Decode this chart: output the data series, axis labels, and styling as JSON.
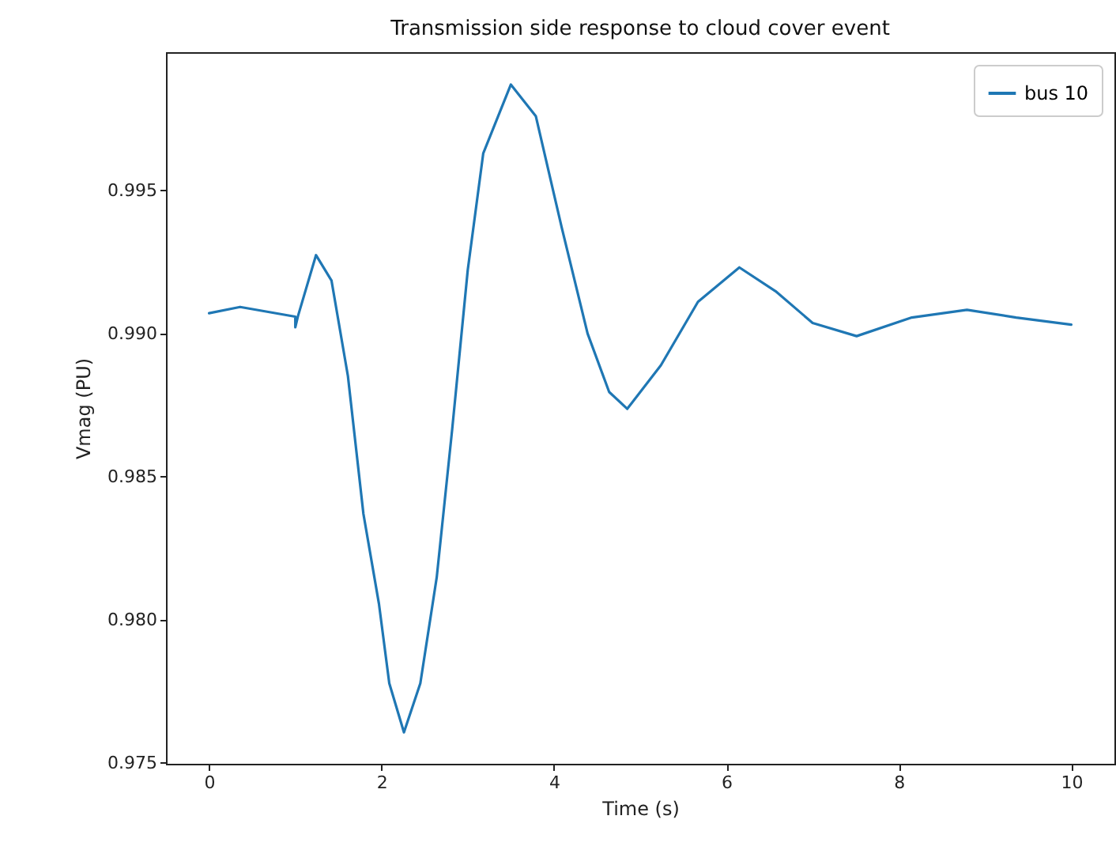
{
  "chart_data": {
    "type": "line",
    "title": "Transmission side response to cloud cover event",
    "xlabel": "Time (s)",
    "ylabel": "Vmag (PU)",
    "x": [
      0,
      0.36,
      1.0,
      1.0,
      1.03,
      1.24,
      1.42,
      1.61,
      1.79,
      1.97,
      2.09,
      2.26,
      2.45,
      2.64,
      2.82,
      3.0,
      3.18,
      3.5,
      3.79,
      4.09,
      4.39,
      4.64,
      4.85,
      5.24,
      5.67,
      6.15,
      6.57,
      7.0,
      7.51,
      8.15,
      8.79,
      9.36,
      10.0
    ],
    "series": [
      {
        "name": "bus 10",
        "color": "#1f77b4",
        "values": [
          0.99071,
          0.99093,
          0.99059,
          0.99022,
          0.9906,
          0.99274,
          0.99185,
          0.98852,
          0.9837,
          0.98056,
          0.97778,
          0.97607,
          0.97778,
          0.98148,
          0.98667,
          0.99222,
          0.9963,
          0.9987,
          0.99759,
          0.9937,
          0.99,
          0.98796,
          0.98737,
          0.98889,
          0.99111,
          0.99231,
          0.99148,
          0.99037,
          0.98991,
          0.99056,
          0.99083,
          0.99056,
          0.99031
        ]
      }
    ],
    "xlim": [
      -0.5,
      10.5
    ],
    "ylim": [
      0.97497,
      0.99983
    ],
    "xticks": [
      0,
      2,
      4,
      6,
      8,
      10
    ],
    "yticks": [
      {
        "value": 0.975,
        "label": "0.975"
      },
      {
        "value": 0.98,
        "label": "0.980"
      },
      {
        "value": 0.985,
        "label": "0.985"
      },
      {
        "value": 0.99,
        "label": "0.990"
      },
      {
        "value": 0.995,
        "label": "0.995"
      }
    ],
    "legend": "top right",
    "line_style": "solid"
  }
}
